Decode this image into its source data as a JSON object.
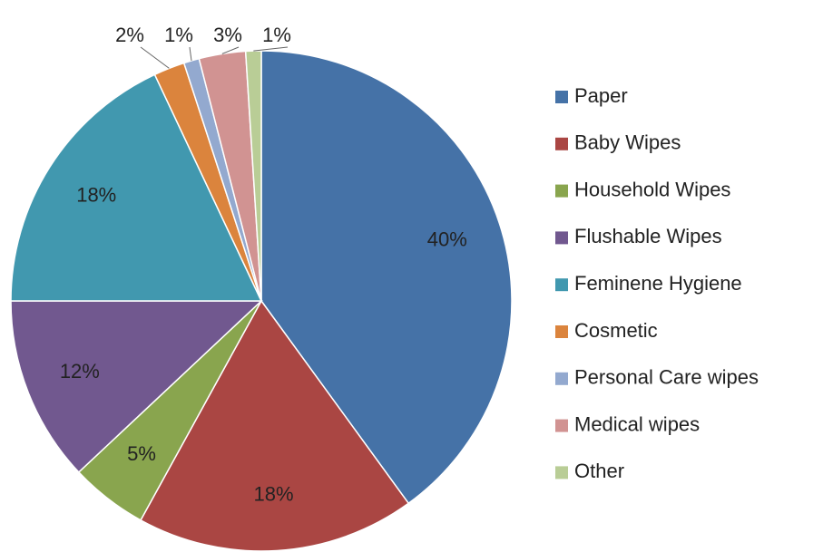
{
  "chart_data": {
    "type": "pie",
    "categories": [
      "Paper",
      "Baby Wipes",
      "Household Wipes",
      "Flushable Wipes",
      "Feminene Hygiene",
      "Cosmetic",
      "Personal Care wipes",
      "Medical wipes",
      "Other"
    ],
    "values": [
      40,
      18,
      5,
      12,
      18,
      2,
      1,
      3,
      1
    ],
    "value_labels": [
      "40%",
      "18%",
      "5%",
      "12%",
      "18%",
      "2%",
      "1%",
      "3%",
      "1%"
    ],
    "colors": [
      "#4572a7",
      "#aa4643",
      "#89a54e",
      "#71588f",
      "#4198af",
      "#db843d",
      "#93a9cf",
      "#d19392",
      "#b9cd96"
    ],
    "legend": "right"
  }
}
